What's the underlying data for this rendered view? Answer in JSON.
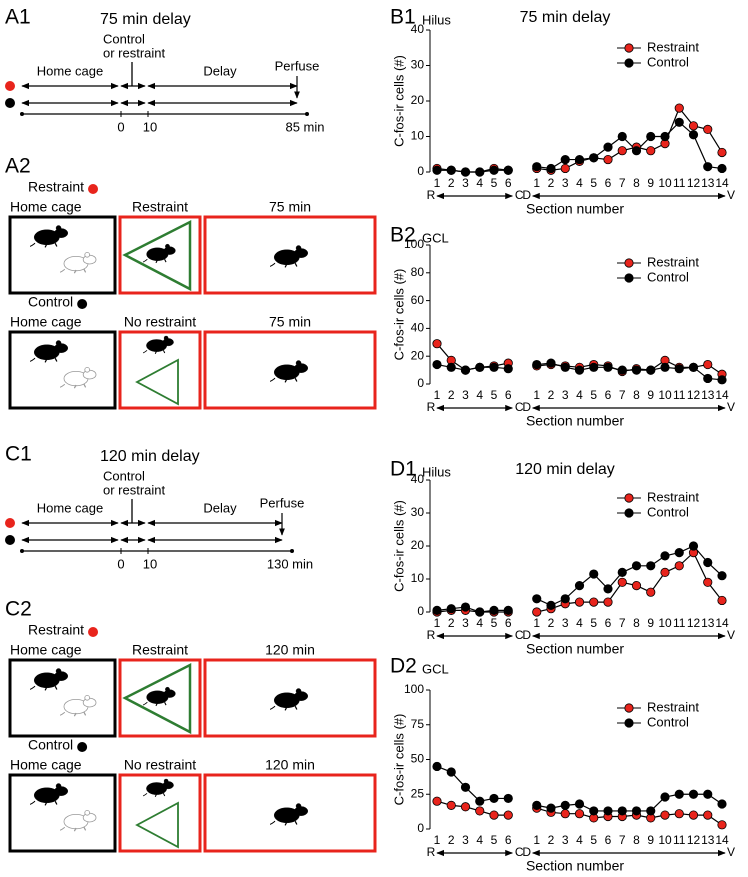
{
  "timelines": [
    {
      "panel": "A1",
      "title": "75 min delay",
      "event": [
        "Control",
        "or restraint"
      ],
      "phases": [
        "Home cage",
        "Delay"
      ],
      "end_label": "Perfuse",
      "ticks": [
        "0",
        "10",
        "85 min"
      ]
    },
    {
      "panel": "C1",
      "title": "120 min delay",
      "event": [
        "Control",
        "or restraint"
      ],
      "phases": [
        "Home cage",
        "Delay"
      ],
      "end_label": "Perfuse",
      "ticks": [
        "0",
        "10",
        "130 min"
      ]
    }
  ],
  "protocols": [
    {
      "panel": "A2",
      "rows": [
        {
          "group": "Restraint",
          "cells": [
            "Home cage",
            "Restraint",
            "75 min"
          ]
        },
        {
          "group": "Control",
          "cells": [
            "Home cage",
            "No restraint",
            "75 min"
          ]
        }
      ]
    },
    {
      "panel": "C2",
      "rows": [
        {
          "group": "Restraint",
          "cells": [
            "Home cage",
            "Restraint",
            "120 min"
          ]
        },
        {
          "group": "Control",
          "cells": [
            "Home cage",
            "No restraint",
            "120 min"
          ]
        }
      ]
    }
  ],
  "chart_data": [
    {
      "type": "line",
      "panel": "B1",
      "region": "Hilus",
      "title": "75 min delay",
      "ylabel": "C-fos-ir cells (#)",
      "xlabel": "Section number",
      "axis_ends": [
        "R",
        "C",
        "D",
        "V"
      ],
      "categories": [
        "1",
        "2",
        "3",
        "4",
        "5",
        "6",
        null,
        "1",
        "2",
        "3",
        "4",
        "5",
        "6",
        "7",
        "8",
        "9",
        "10",
        "11",
        "12",
        "13",
        "14"
      ],
      "series": [
        {
          "name": "Restraint",
          "color": "#e8241c",
          "values": [
            1,
            0.5,
            0,
            0,
            1,
            0.5,
            null,
            1,
            0.5,
            1,
            3,
            4,
            3.5,
            6,
            7,
            6,
            8,
            18,
            13,
            12,
            5.5
          ]
        },
        {
          "name": "Control",
          "color": "#000000",
          "values": [
            0.5,
            0.5,
            0,
            0,
            0.5,
            0.5,
            null,
            1.5,
            1,
            3.5,
            3.5,
            4,
            7,
            10,
            6,
            10,
            10,
            14,
            10.5,
            1.5,
            1
          ]
        }
      ],
      "ylim": [
        0,
        40
      ],
      "yticks": [
        0,
        10,
        20,
        30,
        40
      ],
      "grid": false,
      "legend": "upper right"
    },
    {
      "type": "line",
      "panel": "B2",
      "region": "GCL",
      "ylabel": "C-fos-ir cells (#)",
      "xlabel": "Section number",
      "axis_ends": [
        "R",
        "C",
        "D",
        "V"
      ],
      "categories": [
        "1",
        "2",
        "3",
        "4",
        "5",
        "6",
        null,
        "1",
        "2",
        "3",
        "4",
        "5",
        "6",
        "7",
        "8",
        "9",
        "10",
        "11",
        "12",
        "13",
        "14"
      ],
      "series": [
        {
          "name": "Restraint",
          "color": "#e8241c",
          "values": [
            29,
            17,
            10,
            12,
            13,
            15,
            null,
            13,
            14,
            13,
            12,
            14,
            13,
            9,
            11,
            10,
            17,
            12,
            12,
            14,
            7
          ]
        },
        {
          "name": "Control",
          "color": "#000000",
          "values": [
            14,
            12,
            10,
            12,
            12,
            11,
            null,
            14,
            15,
            12,
            10,
            12,
            12,
            10,
            10,
            10,
            12,
            11,
            12,
            4,
            3
          ]
        }
      ],
      "ylim": [
        0,
        100
      ],
      "yticks": [
        0,
        20,
        40,
        60,
        80,
        100
      ],
      "grid": false,
      "legend": "upper right"
    },
    {
      "type": "line",
      "panel": "D1",
      "region": "Hilus",
      "title": "120 min delay",
      "ylabel": "C-fos-ir cells (#)",
      "xlabel": "Section number",
      "axis_ends": [
        "R",
        "C",
        "D",
        "V"
      ],
      "categories": [
        "1",
        "2",
        "3",
        "4",
        "5",
        "6",
        null,
        "1",
        "2",
        "3",
        "4",
        "5",
        "6",
        "7",
        "8",
        "9",
        "10",
        "11",
        "12",
        "13",
        "14"
      ],
      "series": [
        {
          "name": "Restraint",
          "color": "#e8241c",
          "values": [
            0,
            0.5,
            0.5,
            0,
            0,
            0,
            null,
            0,
            1,
            2.5,
            3,
            3,
            3,
            9,
            8,
            6,
            12,
            14,
            18,
            9,
            3.5
          ]
        },
        {
          "name": "Control",
          "color": "#000000",
          "values": [
            0.5,
            1,
            1.5,
            0,
            0.5,
            0.5,
            null,
            4,
            2,
            4,
            8,
            11.5,
            7,
            12,
            14,
            14,
            17,
            18,
            20,
            15,
            11
          ]
        }
      ],
      "ylim": [
        0,
        40
      ],
      "yticks": [
        0,
        10,
        20,
        30,
        40
      ],
      "grid": false,
      "legend": "upper right"
    },
    {
      "type": "line",
      "panel": "D2",
      "region": "GCL",
      "ylabel": "C-fos-ir cells (#)",
      "xlabel": "Section number",
      "axis_ends": [
        "R",
        "C",
        "D",
        "V"
      ],
      "categories": [
        "1",
        "2",
        "3",
        "4",
        "5",
        "6",
        null,
        "1",
        "2",
        "3",
        "4",
        "5",
        "6",
        "7",
        "8",
        "9",
        "10",
        "11",
        "12",
        "13",
        "14"
      ],
      "series": [
        {
          "name": "Restraint",
          "color": "#e8241c",
          "values": [
            20,
            17,
            16,
            13,
            10,
            10,
            null,
            15,
            12,
            11,
            11,
            8,
            9,
            9,
            10,
            8,
            10,
            11,
            10,
            10,
            3
          ]
        },
        {
          "name": "Control",
          "color": "#000000",
          "values": [
            45,
            41,
            30,
            20,
            22,
            22,
            null,
            17,
            15,
            17,
            18,
            13,
            13,
            13,
            13,
            13,
            23,
            25,
            25,
            25,
            18
          ]
        }
      ],
      "ylim": [
        0,
        100
      ],
      "yticks": [
        0,
        25,
        50,
        75,
        100
      ],
      "grid": false,
      "legend": "upper right"
    }
  ]
}
